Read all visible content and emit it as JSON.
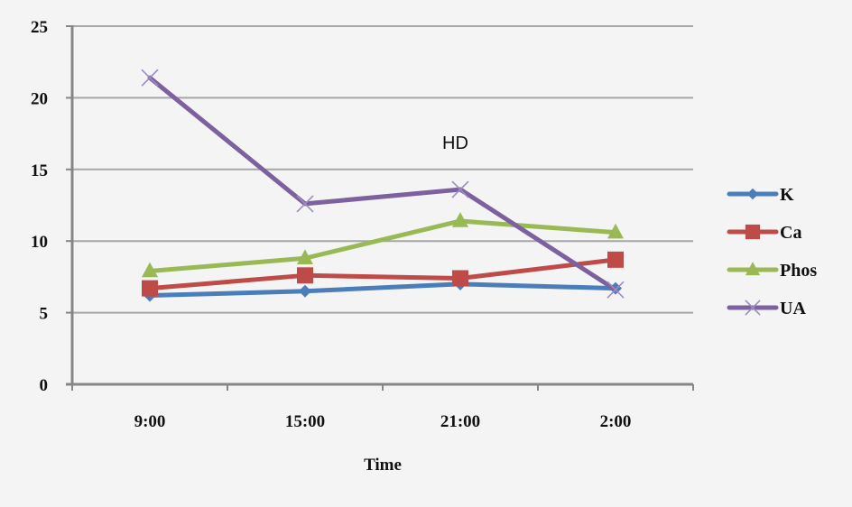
{
  "chart_data": {
    "type": "line",
    "title": "",
    "annotation": "HD",
    "xlabel": "Time",
    "ylabel": "",
    "categories": [
      "9:00",
      "15:00",
      "21:00",
      "2:00"
    ],
    "ylim": [
      0,
      25
    ],
    "yticks": [
      0,
      5,
      10,
      15,
      20,
      25
    ],
    "grid": true,
    "legend_position": "right",
    "series": [
      {
        "name": "K",
        "color": "#4a7ebb",
        "marker": "diamond",
        "values": [
          6.2,
          6.5,
          7.0,
          6.7
        ]
      },
      {
        "name": "Ca",
        "color": "#be4b48",
        "marker": "square",
        "values": [
          6.7,
          7.6,
          7.4,
          8.7
        ]
      },
      {
        "name": "Phos",
        "color": "#98b954",
        "marker": "triangle",
        "values": [
          7.9,
          8.8,
          11.4,
          10.6
        ]
      },
      {
        "name": "UA",
        "color": "#7d60a0",
        "marker": "x",
        "values": [
          21.4,
          12.6,
          13.6,
          6.6
        ]
      }
    ]
  },
  "colors": {
    "background": "#f4f4f4",
    "gridline": "#a6a6a6",
    "axis": "#868686",
    "text": "#111111"
  }
}
